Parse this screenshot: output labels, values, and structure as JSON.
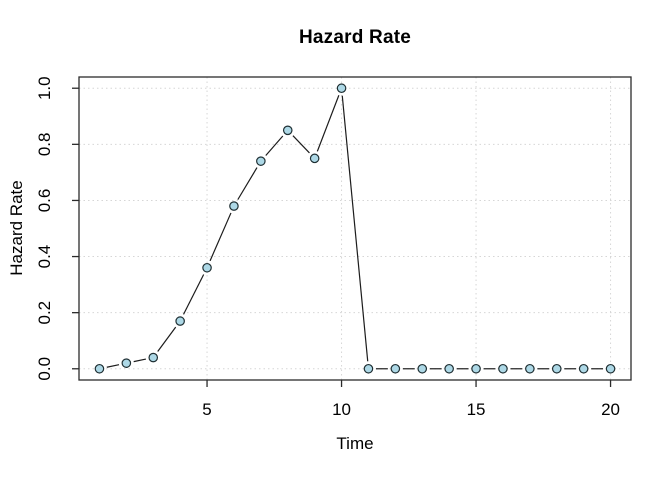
{
  "chart_data": {
    "type": "line",
    "title": "Hazard Rate",
    "xlabel": "Time",
    "ylabel": "Hazard Rate",
    "x": [
      1,
      2,
      3,
      4,
      5,
      6,
      7,
      8,
      9,
      10,
      11,
      12,
      13,
      14,
      15,
      16,
      17,
      18,
      19,
      20
    ],
    "y": [
      0.0,
      0.02,
      0.04,
      0.17,
      0.36,
      0.58,
      0.74,
      0.85,
      0.75,
      1.0,
      0.0,
      0.0,
      0.0,
      0.0,
      0.0,
      0.0,
      0.0,
      0.0,
      0.0,
      0.0
    ],
    "xlim": [
      0.24,
      20.76
    ],
    "ylim": [
      -0.04,
      1.04
    ],
    "x_tick_values": [
      5,
      10,
      15,
      20
    ],
    "x_tick_labels": [
      "5",
      "10",
      "15",
      "20"
    ],
    "y_tick_values": [
      0.0,
      0.2,
      0.4,
      0.6,
      0.8,
      1.0
    ],
    "y_tick_labels": [
      "0.0",
      "0.2",
      "0.4",
      "0.6",
      "0.8",
      "1.0"
    ],
    "grid": true,
    "grid_style": "dotted",
    "legend_position": "none",
    "marker": "circle",
    "colors": {
      "point_fill": "#ADD8E6",
      "point_stroke": "#1f2f33",
      "line": "#1c1c1c",
      "grid": "#d6d6d6",
      "axis": "#2b2b2b",
      "text": "#000000",
      "background": "#ffffff"
    }
  }
}
